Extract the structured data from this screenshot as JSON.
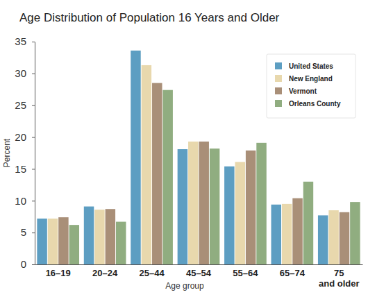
{
  "chart_data": {
    "type": "bar",
    "title": "Age Distribution of Population 16 Years and Older",
    "x_label": "Age group",
    "y_label": "Percent",
    "categories": [
      "16–19",
      "20–24",
      "25–44",
      "45–54",
      "55–64",
      "65–74",
      "75 and older"
    ],
    "series": [
      {
        "name": "United States",
        "color": "#5d9ec2",
        "values": [
          7.2,
          9.1,
          33.6,
          18.1,
          15.4,
          9.4,
          7.7
        ]
      },
      {
        "name": "New England",
        "color": "#e8d8ad",
        "values": [
          7.2,
          8.6,
          31.3,
          19.3,
          16.1,
          9.5,
          8.5
        ]
      },
      {
        "name": "Vermont",
        "color": "#a98f78",
        "values": [
          7.4,
          8.7,
          28.5,
          19.3,
          17.9,
          10.4,
          8.2
        ]
      },
      {
        "name": "Orleans County",
        "color": "#90ad80",
        "values": [
          6.2,
          6.7,
          27.4,
          18.2,
          19.1,
          13.0,
          9.8
        ]
      }
    ],
    "ylim": [
      0,
      35
    ],
    "yticks": [
      0,
      5,
      10,
      15,
      20,
      25,
      30,
      35
    ],
    "grid": false,
    "legend": "upper right"
  }
}
